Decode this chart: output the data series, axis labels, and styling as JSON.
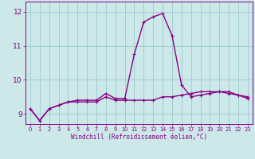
{
  "xlabel": "Windchill (Refroidissement éolien,°C)",
  "xlim": [
    -0.5,
    23.5
  ],
  "ylim": [
    8.7,
    12.3
  ],
  "yticks": [
    9,
    10,
    11,
    12
  ],
  "xticks": [
    0,
    1,
    2,
    3,
    4,
    5,
    6,
    7,
    8,
    9,
    10,
    11,
    12,
    13,
    14,
    15,
    16,
    17,
    18,
    19,
    20,
    21,
    22,
    23
  ],
  "background_color": "#cce8e8",
  "grid_color": "#99cccc",
  "line_color": "#880088",
  "series1_x": [
    0,
    1,
    2,
    3,
    4,
    5,
    6,
    7,
    8,
    9,
    10,
    11,
    12,
    13,
    14,
    15,
    16,
    17,
    18,
    19,
    20,
    21,
    22,
    23
  ],
  "series1_y": [
    9.15,
    8.8,
    9.15,
    9.25,
    9.35,
    9.35,
    9.35,
    9.35,
    9.5,
    9.4,
    9.4,
    9.4,
    9.4,
    9.4,
    9.5,
    9.5,
    9.55,
    9.6,
    9.65,
    9.65,
    9.65,
    9.6,
    9.55,
    9.5
  ],
  "series2_x": [
    0,
    1,
    2,
    3,
    4,
    5,
    6,
    7,
    8,
    9,
    10,
    11,
    12,
    13,
    14,
    15,
    16,
    17,
    18,
    19,
    20,
    21,
    22,
    23
  ],
  "series2_y": [
    9.15,
    8.8,
    9.15,
    9.25,
    9.35,
    9.4,
    9.4,
    9.4,
    9.6,
    9.45,
    9.45,
    10.75,
    11.7,
    11.85,
    11.95,
    11.3,
    9.85,
    9.5,
    9.55,
    9.6,
    9.65,
    9.65,
    9.55,
    9.45
  ],
  "marker_size": 3,
  "linewidth": 1.0
}
